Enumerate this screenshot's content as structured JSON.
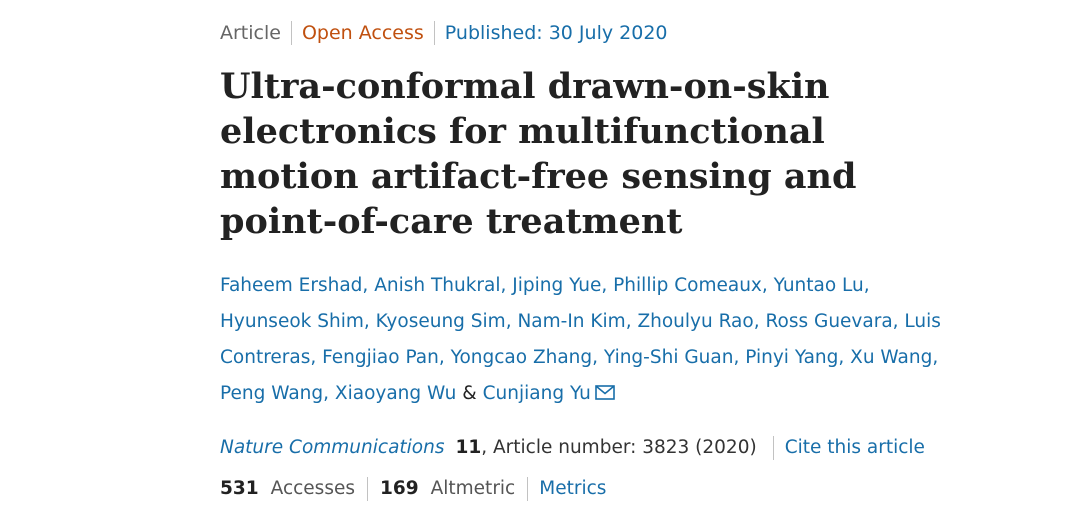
{
  "header": {
    "article_type": "Article",
    "open_access": "Open Access",
    "published": "Published: 30 July 2020"
  },
  "title": "Ultra-conformal drawn-on-skin electronics for multifunctional motion artifact-free sensing and point-of-care treatment",
  "authors": [
    "Faheem Ershad",
    "Anish Thukral",
    "Jiping Yue",
    "Phillip Comeaux",
    "Yuntao Lu",
    "Hyunseok Shim",
    "Kyoseung Sim",
    "Nam-In Kim",
    "Zhoulyu Rao",
    "Ross Guevara",
    "Luis Contreras",
    "Fengjiao Pan",
    "Yongcao Zhang",
    "Ying-Shi Guan",
    "Pinyi Yang",
    "Xu Wang",
    "Peng Wang",
    "Xiaoyang Wu",
    "Cunjiang Yu"
  ],
  "author_separator": ", ",
  "author_conjunction": "&",
  "corresponding_icon": "mail-icon",
  "citation": {
    "journal": "Nature Communications",
    "volume": "11",
    "article_number": ", Article number: 3823 (2020)",
    "cite_link": "Cite this article"
  },
  "metrics": {
    "accesses_value": "531",
    "accesses_label": "Accesses",
    "altmetric_value": "169",
    "altmetric_label": "Altmetric",
    "metrics_link": "Metrics"
  },
  "colors": {
    "link": "#186ea9",
    "open_access": "#c0500f",
    "text": "#222222",
    "muted": "#666666"
  }
}
